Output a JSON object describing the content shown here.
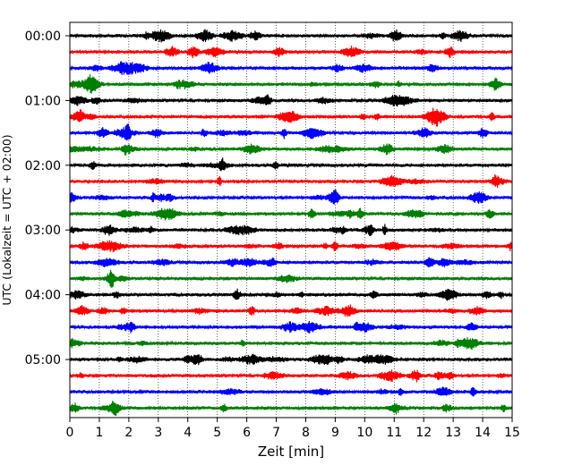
{
  "chart_data": {
    "type": "line",
    "title": "",
    "xlabel": "Zeit  [min]",
    "ylabel": "UTC (Lokalzeit = UTC + 02:00)",
    "xlim": [
      0,
      15
    ],
    "x_ticks": [
      0,
      1,
      2,
      3,
      4,
      5,
      6,
      7,
      8,
      9,
      10,
      11,
      12,
      13,
      14,
      15
    ],
    "x_tick_labels": [
      "0",
      "1",
      "2",
      "3",
      "4",
      "5",
      "6",
      "7",
      "8",
      "9",
      "10",
      "11",
      "12",
      "13",
      "14",
      "15"
    ],
    "y_tick_labels": [
      {
        "label": "00:00",
        "trace": 0
      },
      {
        "label": "01:00",
        "trace": 4
      },
      {
        "label": "02:00",
        "trace": 8
      },
      {
        "label": "03:00",
        "trace": 12
      },
      {
        "label": "04:00",
        "trace": 16
      },
      {
        "label": "05:00",
        "trace": 20
      }
    ],
    "trace_interval_min": 15,
    "trace_count": 24,
    "trace_colors": [
      "#000000",
      "#ff0000",
      "#0000ff",
      "#008000"
    ],
    "grid_x": true,
    "grid_style": "dotted",
    "legend": "none"
  }
}
